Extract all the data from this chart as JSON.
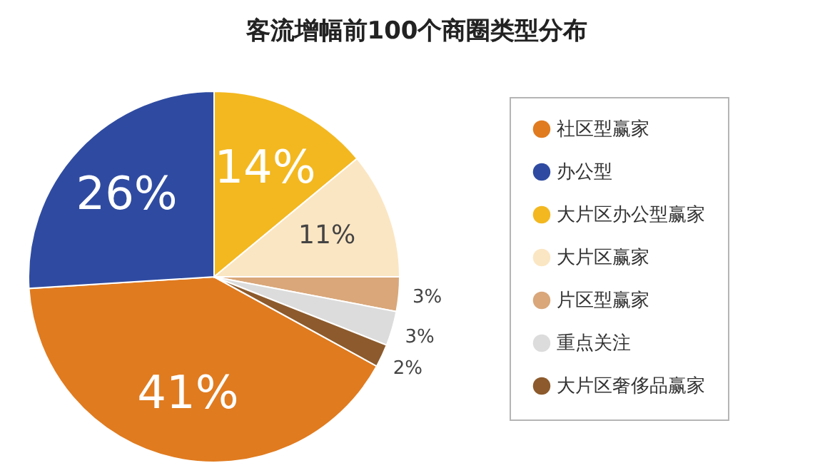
{
  "chart_data": {
    "type": "pie",
    "title": "客流增幅前100个商圈类型分布",
    "categories": [
      "社区型赢家",
      "办公型",
      "大片区办公型赢家",
      "大片区赢家",
      "片区型赢家",
      "重点关注",
      "大片区奢侈品赢家"
    ],
    "values": [
      41,
      26,
      14,
      11,
      3,
      3,
      2
    ],
    "colors": [
      "#e07b1f",
      "#2f4ba1",
      "#f3b820",
      "#fbe6c3",
      "#d9a77a",
      "#dcdcdc",
      "#8c5a2c"
    ],
    "value_labels": [
      "41%",
      "26%",
      "14%",
      "11%",
      "3%",
      "3%",
      "2%"
    ],
    "legend": "right"
  }
}
